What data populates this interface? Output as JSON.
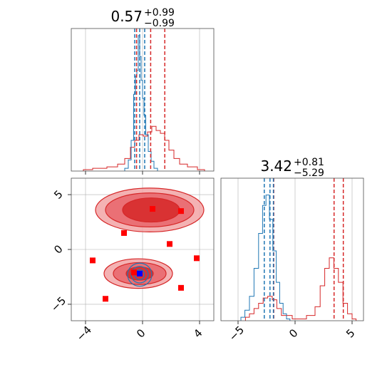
{
  "chart_data": {
    "type": "corner",
    "grid": true,
    "colors": {
      "red": "#d62728",
      "blue": "#1f77b4",
      "red_fill_light": "#f2a5a6",
      "red_fill_mid": "#e8646a",
      "red_fill_dark": "#d62728",
      "marker_red": "#ff0000",
      "marker_blue": "#0000ff",
      "grid": "#b0b0b0"
    },
    "parameters": [
      {
        "title": {
          "value": "0.57",
          "upper": "+0.99",
          "lower": "−0.99"
        },
        "xlim": [
          -5,
          5
        ],
        "ticks": [
          -4,
          0,
          4
        ],
        "tick_labels": [
          "−4",
          "0",
          "4"
        ],
        "red_quantiles": [
          -0.42,
          0.57,
          1.56
        ],
        "blue_quantiles": [
          -0.55,
          -0.2,
          0.15
        ],
        "red_hist": [
          {
            "x": -4.0,
            "y": 0.01
          },
          {
            "x": -3.0,
            "y": 0.02
          },
          {
            "x": -2.0,
            "y": 0.03
          },
          {
            "x": -1.5,
            "y": 0.05
          },
          {
            "x": -1.0,
            "y": 0.09
          },
          {
            "x": -0.7,
            "y": 0.17
          },
          {
            "x": -0.4,
            "y": 0.22
          },
          {
            "x": -0.1,
            "y": 0.26
          },
          {
            "x": 0.2,
            "y": 0.25
          },
          {
            "x": 0.5,
            "y": 0.28
          },
          {
            "x": 0.8,
            "y": 0.32
          },
          {
            "x": 1.1,
            "y": 0.29
          },
          {
            "x": 1.4,
            "y": 0.27
          },
          {
            "x": 1.7,
            "y": 0.22
          },
          {
            "x": 2.0,
            "y": 0.15
          },
          {
            "x": 2.4,
            "y": 0.09
          },
          {
            "x": 2.8,
            "y": 0.05
          },
          {
            "x": 3.5,
            "y": 0.03
          },
          {
            "x": 4.2,
            "y": 0.01
          }
        ],
        "blue_hist": [
          {
            "x": -1.1,
            "y": 0.02
          },
          {
            "x": -0.9,
            "y": 0.08
          },
          {
            "x": -0.7,
            "y": 0.22
          },
          {
            "x": -0.55,
            "y": 0.55
          },
          {
            "x": -0.45,
            "y": 0.68
          },
          {
            "x": -0.35,
            "y": 0.72
          },
          {
            "x": -0.25,
            "y": 0.97
          },
          {
            "x": -0.15,
            "y": 0.82
          },
          {
            "x": -0.05,
            "y": 0.65
          },
          {
            "x": 0.05,
            "y": 0.52
          },
          {
            "x": 0.15,
            "y": 0.4
          },
          {
            "x": 0.3,
            "y": 0.26
          },
          {
            "x": 0.5,
            "y": 0.14
          },
          {
            "x": 0.7,
            "y": 0.07
          },
          {
            "x": 0.9,
            "y": 0.02
          }
        ]
      },
      {
        "title": {
          "value": "3.42",
          "upper": "+0.81",
          "lower": "−5.29"
        },
        "xlim": [
          -6.5,
          6.0
        ],
        "ticks": [
          -5,
          0,
          5
        ],
        "tick_labels": [
          "−5",
          "0",
          "5"
        ],
        "red_quantiles": [
          -1.87,
          3.42,
          4.23
        ],
        "blue_quantiles": [
          -2.7,
          -2.2,
          -1.9
        ],
        "red_hist": [
          {
            "x": -4.2,
            "y": 0.02
          },
          {
            "x": -3.8,
            "y": 0.04
          },
          {
            "x": -3.4,
            "y": 0.07
          },
          {
            "x": -3.0,
            "y": 0.1
          },
          {
            "x": -2.6,
            "y": 0.13
          },
          {
            "x": -2.2,
            "y": 0.14
          },
          {
            "x": -1.8,
            "y": 0.12
          },
          {
            "x": -1.4,
            "y": 0.07
          },
          {
            "x": -1.0,
            "y": 0.03
          },
          {
            "x": 0.5,
            "y": 0.01
          },
          {
            "x": 1.5,
            "y": 0.03
          },
          {
            "x": 2.0,
            "y": 0.08
          },
          {
            "x": 2.4,
            "y": 0.2
          },
          {
            "x": 2.8,
            "y": 0.3
          },
          {
            "x": 3.2,
            "y": 0.36
          },
          {
            "x": 3.6,
            "y": 0.3
          },
          {
            "x": 4.0,
            "y": 0.22
          },
          {
            "x": 4.4,
            "y": 0.1
          },
          {
            "x": 4.8,
            "y": 0.04
          },
          {
            "x": 5.2,
            "y": 0.01
          }
        ],
        "blue_hist": [
          {
            "x": -4.6,
            "y": 0.02
          },
          {
            "x": -4.2,
            "y": 0.06
          },
          {
            "x": -3.8,
            "y": 0.14
          },
          {
            "x": -3.4,
            "y": 0.3
          },
          {
            "x": -3.0,
            "y": 0.5
          },
          {
            "x": -2.7,
            "y": 0.66
          },
          {
            "x": -2.4,
            "y": 0.72
          },
          {
            "x": -2.1,
            "y": 0.58
          },
          {
            "x": -1.8,
            "y": 0.4
          },
          {
            "x": -1.5,
            "y": 0.22
          },
          {
            "x": -1.2,
            "y": 0.1
          },
          {
            "x": -0.9,
            "y": 0.04
          },
          {
            "x": -0.6,
            "y": 0.01
          }
        ]
      }
    ],
    "joint": {
      "xlim": [
        -5,
        5
      ],
      "ylim": [
        -6.5,
        6.5
      ],
      "xticks": [
        -4,
        0,
        4
      ],
      "yticks": [
        5,
        0,
        -5
      ],
      "ytick_labels": [
        "5",
        "0",
        "−5"
      ],
      "red_contours": [
        {
          "cx": 0.5,
          "cy": 3.6,
          "rx": 3.8,
          "ry": 2.0,
          "level": "outer"
        },
        {
          "cx": 0.5,
          "cy": 3.6,
          "rx": 3.1,
          "ry": 1.55,
          "level": "mid"
        },
        {
          "cx": 0.6,
          "cy": 3.6,
          "rx": 2.0,
          "ry": 1.1,
          "level": "inner"
        },
        {
          "cx": -0.3,
          "cy": -2.2,
          "rx": 2.4,
          "ry": 1.35,
          "level": "outer"
        },
        {
          "cx": -0.2,
          "cy": -2.2,
          "rx": 1.85,
          "ry": 1.0,
          "level": "mid"
        },
        {
          "cx": -0.2,
          "cy": -2.2,
          "rx": 0.95,
          "ry": 0.6,
          "level": "inner"
        }
      ],
      "blue_contours": [
        {
          "cx": -0.2,
          "cy": -2.3,
          "rx": 0.85,
          "ry": 1.05
        },
        {
          "cx": -0.2,
          "cy": -2.3,
          "rx": 0.6,
          "ry": 0.75
        },
        {
          "cx": -0.2,
          "cy": -2.3,
          "rx": 0.35,
          "ry": 0.45
        }
      ],
      "red_markers": [
        {
          "x": 0.7,
          "y": 3.7
        },
        {
          "x": 2.7,
          "y": 3.5
        },
        {
          "x": -1.3,
          "y": 1.5
        },
        {
          "x": 1.9,
          "y": 0.5
        },
        {
          "x": -3.5,
          "y": -1.0
        },
        {
          "x": 3.8,
          "y": -0.8
        },
        {
          "x": -0.6,
          "y": -2.1
        },
        {
          "x": 2.7,
          "y": -3.5
        },
        {
          "x": -2.6,
          "y": -4.5
        }
      ],
      "blue_markers": [
        {
          "x": -0.2,
          "y": -2.2
        }
      ]
    }
  }
}
